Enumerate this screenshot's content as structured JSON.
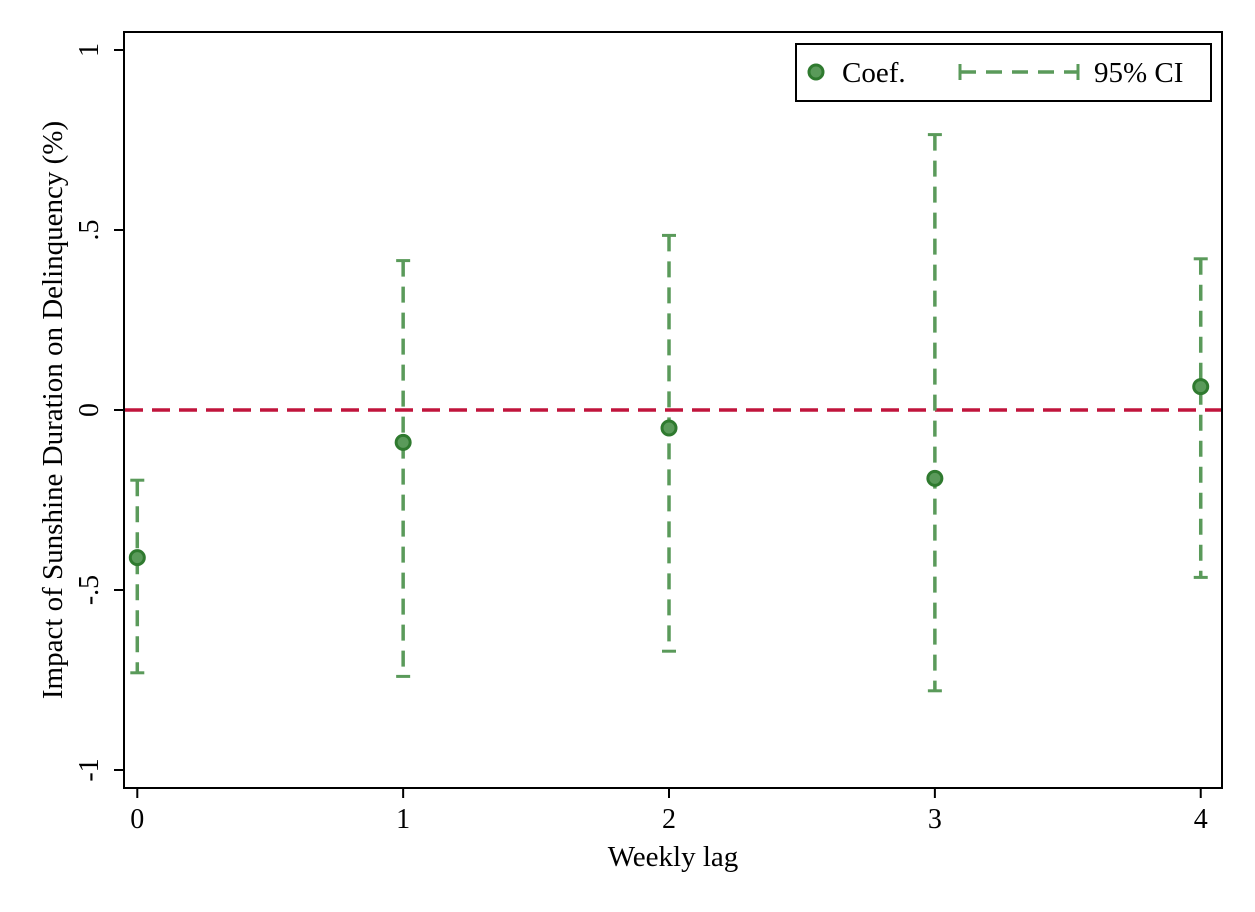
{
  "chart_data": {
    "type": "scatter",
    "xlabel": "Weekly lag",
    "ylabel": "Impact of Sunshine Duration on Delinquency (%)",
    "xlim": [
      -0.05,
      4.08
    ],
    "ylim": [
      -1.05,
      1.05
    ],
    "x_ticks": [
      0,
      1,
      2,
      3,
      4
    ],
    "x_tick_labels": [
      "0",
      "1",
      "2",
      "3",
      "4"
    ],
    "y_ticks": [
      -1,
      -0.5,
      0,
      0.5,
      1
    ],
    "y_tick_labels": [
      "-1",
      "-.5",
      "0",
      ".5",
      "1"
    ],
    "grid": false,
    "legend_position": "top-right",
    "reference_line": {
      "y": 0,
      "style": "dashed",
      "color": "#c0143c"
    },
    "series": [
      {
        "name": "Coef.",
        "marker": "circle",
        "color": "#3a8a3a",
        "x": [
          0,
          1,
          2,
          3,
          4
        ],
        "y": [
          -0.41,
          -0.09,
          -0.05,
          -0.19,
          0.065
        ]
      },
      {
        "name": "95% CI",
        "style": "dashed capped range",
        "color": "#5a9a5a",
        "x": [
          0,
          1,
          2,
          3,
          4
        ],
        "lower": [
          -0.73,
          -0.74,
          -0.67,
          -0.78,
          -0.465
        ],
        "upper": [
          -0.195,
          0.415,
          0.485,
          0.765,
          0.42
        ]
      }
    ]
  }
}
